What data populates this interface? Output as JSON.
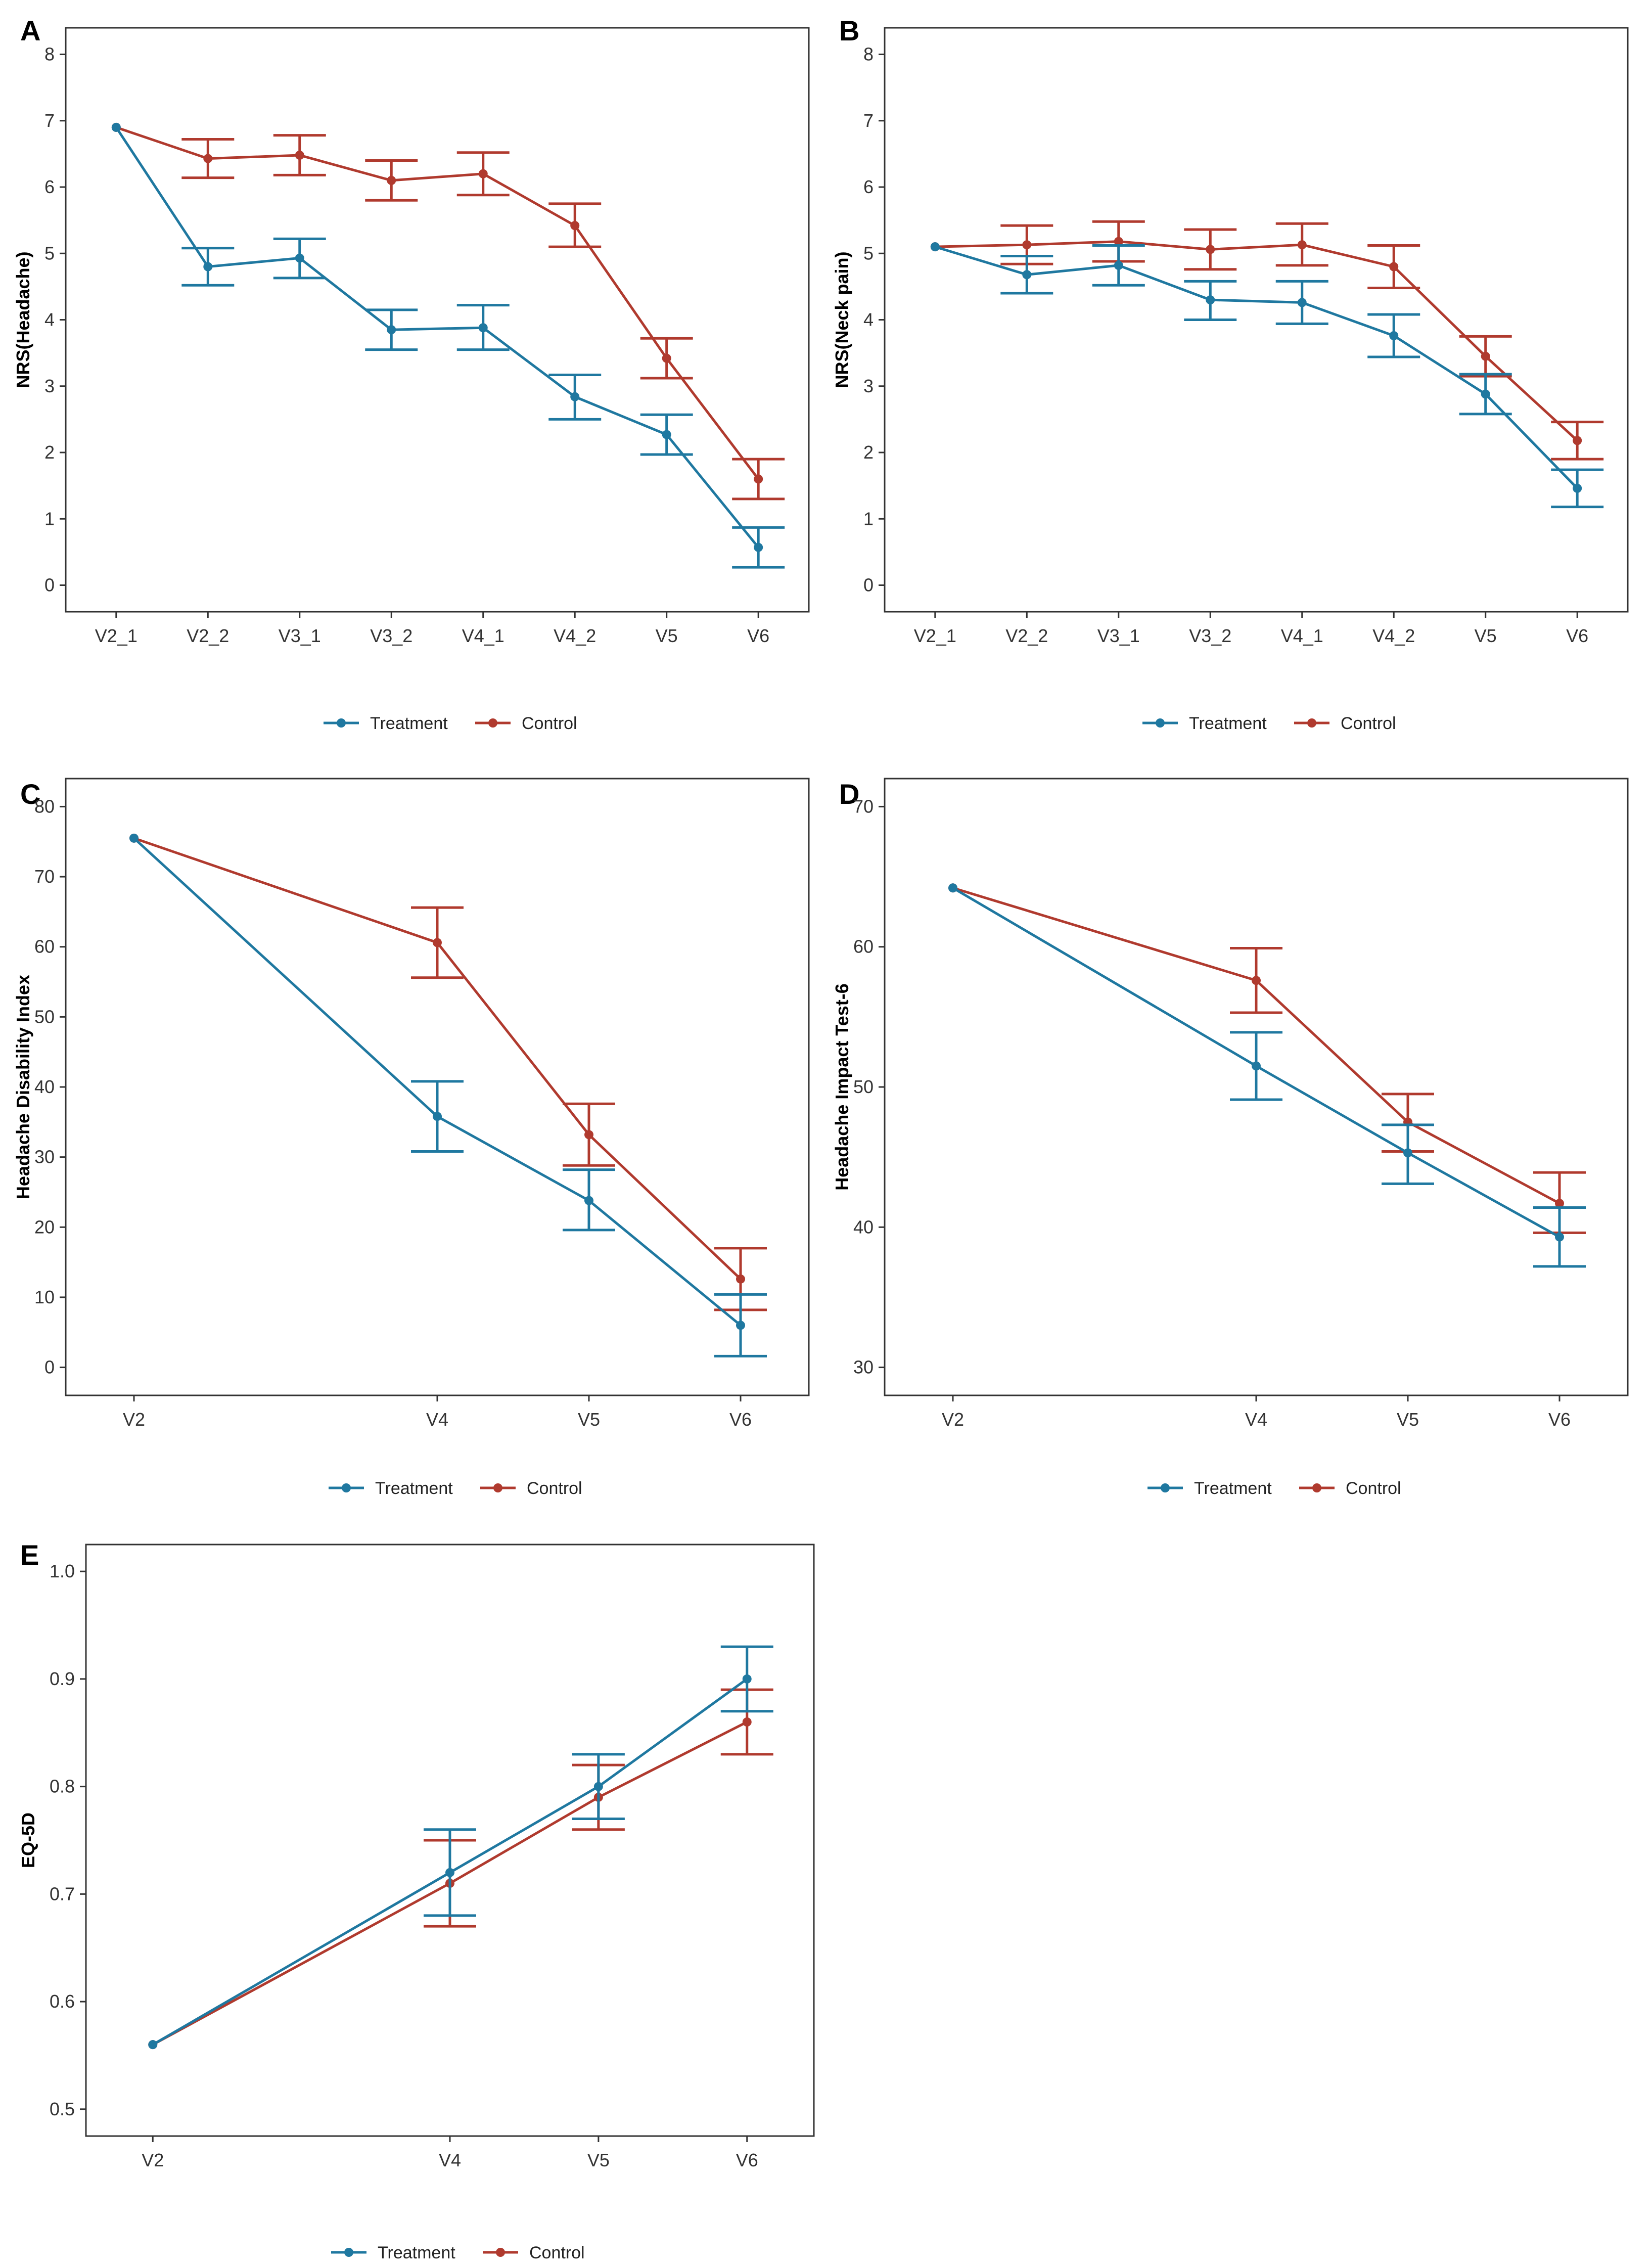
{
  "colors": {
    "treatment": "#1f78a0",
    "control": "#b03a2e",
    "frame": "#333333"
  },
  "legend": {
    "treatment": "Treatment",
    "control": "Control"
  },
  "chart_data": [
    {
      "panel": "A",
      "type": "line",
      "title": "",
      "xlabel": "",
      "ylabel": "NRS(Headache)",
      "categories": [
        "V2_1",
        "V2_2",
        "V3_1",
        "V3_2",
        "V4_1",
        "V4_2",
        "V5",
        "V6"
      ],
      "x": [
        1,
        2,
        3,
        4,
        5,
        6,
        7,
        8
      ],
      "xlim": [
        0.45,
        8.55
      ],
      "ylim": [
        -0.4,
        8.4
      ],
      "yticks": [
        0,
        1,
        2,
        3,
        4,
        5,
        6,
        7,
        8
      ],
      "series": [
        {
          "name": "Treatment",
          "values": [
            6.9,
            4.8,
            4.93,
            3.85,
            3.88,
            2.84,
            2.27,
            0.57
          ],
          "lower": [
            null,
            4.52,
            4.63,
            3.55,
            3.55,
            2.5,
            1.97,
            0.27
          ],
          "upper": [
            null,
            5.08,
            5.22,
            4.15,
            4.22,
            3.17,
            2.57,
            0.87
          ]
        },
        {
          "name": "Control",
          "values": [
            6.9,
            6.43,
            6.48,
            6.1,
            6.2,
            5.42,
            3.42,
            1.6
          ],
          "lower": [
            null,
            6.14,
            6.18,
            5.8,
            5.88,
            5.1,
            3.12,
            1.3
          ],
          "upper": [
            null,
            6.72,
            6.78,
            6.4,
            6.52,
            5.75,
            3.72,
            1.9
          ]
        }
      ]
    },
    {
      "panel": "B",
      "type": "line",
      "title": "",
      "xlabel": "",
      "ylabel": "NRS(Neck pain)",
      "categories": [
        "V2_1",
        "V2_2",
        "V3_1",
        "V3_2",
        "V4_1",
        "V4_2",
        "V5",
        "V6"
      ],
      "x": [
        1,
        2,
        3,
        4,
        5,
        6,
        7,
        8
      ],
      "xlim": [
        0.45,
        8.55
      ],
      "ylim": [
        -0.4,
        8.4
      ],
      "yticks": [
        0,
        1,
        2,
        3,
        4,
        5,
        6,
        7,
        8
      ],
      "series": [
        {
          "name": "Treatment",
          "values": [
            5.1,
            4.68,
            4.82,
            4.3,
            4.26,
            3.76,
            2.88,
            1.46
          ],
          "lower": [
            null,
            4.4,
            4.52,
            4.0,
            3.94,
            3.44,
            2.58,
            1.18
          ],
          "upper": [
            null,
            4.96,
            5.12,
            4.58,
            4.58,
            4.08,
            3.18,
            1.74
          ]
        },
        {
          "name": "Control",
          "values": [
            5.1,
            5.13,
            5.18,
            5.06,
            5.13,
            4.8,
            3.45,
            2.18
          ],
          "lower": [
            null,
            4.84,
            4.88,
            4.76,
            4.82,
            4.48,
            3.15,
            1.9
          ],
          "upper": [
            null,
            5.42,
            5.48,
            5.36,
            5.45,
            5.12,
            3.75,
            2.46
          ]
        }
      ]
    },
    {
      "panel": "C",
      "type": "line",
      "title": "",
      "xlabel": "",
      "ylabel": "Headache Disability Index",
      "categories": [
        "V2",
        "V4",
        "V5",
        "V6"
      ],
      "x": [
        1,
        3,
        4,
        5
      ],
      "xlim": [
        0.55,
        5.45
      ],
      "ylim": [
        -4,
        84
      ],
      "yticks": [
        0,
        10,
        20,
        30,
        40,
        50,
        60,
        70,
        80
      ],
      "series": [
        {
          "name": "Treatment",
          "values": [
            75.5,
            35.8,
            23.8,
            6.0
          ],
          "lower": [
            null,
            30.8,
            19.6,
            1.6
          ],
          "upper": [
            null,
            40.8,
            28.2,
            10.4
          ]
        },
        {
          "name": "Control",
          "values": [
            75.5,
            60.6,
            33.2,
            12.6
          ],
          "lower": [
            null,
            55.6,
            28.8,
            8.2
          ],
          "upper": [
            null,
            65.6,
            37.6,
            17.0
          ]
        }
      ]
    },
    {
      "panel": "D",
      "type": "line",
      "title": "",
      "xlabel": "",
      "ylabel": "Headache Impact Test-6",
      "categories": [
        "V2",
        "V4",
        "V5",
        "V6"
      ],
      "x": [
        1,
        3,
        4,
        5
      ],
      "xlim": [
        0.55,
        5.45
      ],
      "ylim": [
        28.0,
        72.0
      ],
      "yticks": [
        30,
        40,
        50,
        60,
        70
      ],
      "series": [
        {
          "name": "Treatment",
          "values": [
            64.2,
            51.5,
            45.3,
            39.3
          ],
          "lower": [
            null,
            49.1,
            43.1,
            37.2
          ],
          "upper": [
            null,
            53.9,
            47.3,
            41.4
          ]
        },
        {
          "name": "Control",
          "values": [
            64.2,
            57.6,
            47.5,
            41.7
          ],
          "lower": [
            null,
            55.3,
            45.4,
            39.6
          ],
          "upper": [
            null,
            59.9,
            49.5,
            43.9
          ]
        }
      ]
    },
    {
      "panel": "E",
      "type": "line",
      "title": "",
      "xlabel": "",
      "ylabel": "EQ-5D",
      "categories": [
        "V2",
        "V4",
        "V5",
        "V6"
      ],
      "x": [
        1,
        3,
        4,
        5
      ],
      "xlim": [
        0.55,
        5.45
      ],
      "ylim": [
        0.475,
        1.025
      ],
      "yticks": [
        0.5,
        0.6,
        0.7,
        0.8,
        0.9,
        1.0
      ],
      "ytick_labels": [
        "0.5",
        "0.6",
        "0.7",
        "0.8",
        "0.9",
        "1.0"
      ],
      "series": [
        {
          "name": "Treatment",
          "values": [
            0.56,
            0.72,
            0.8,
            0.9
          ],
          "lower": [
            null,
            0.68,
            0.77,
            0.87
          ],
          "upper": [
            null,
            0.76,
            0.83,
            0.93
          ]
        },
        {
          "name": "Control",
          "values": [
            0.56,
            0.71,
            0.79,
            0.86
          ],
          "lower": [
            null,
            0.67,
            0.76,
            0.83
          ],
          "upper": [
            null,
            0.75,
            0.82,
            0.89
          ]
        }
      ]
    }
  ]
}
